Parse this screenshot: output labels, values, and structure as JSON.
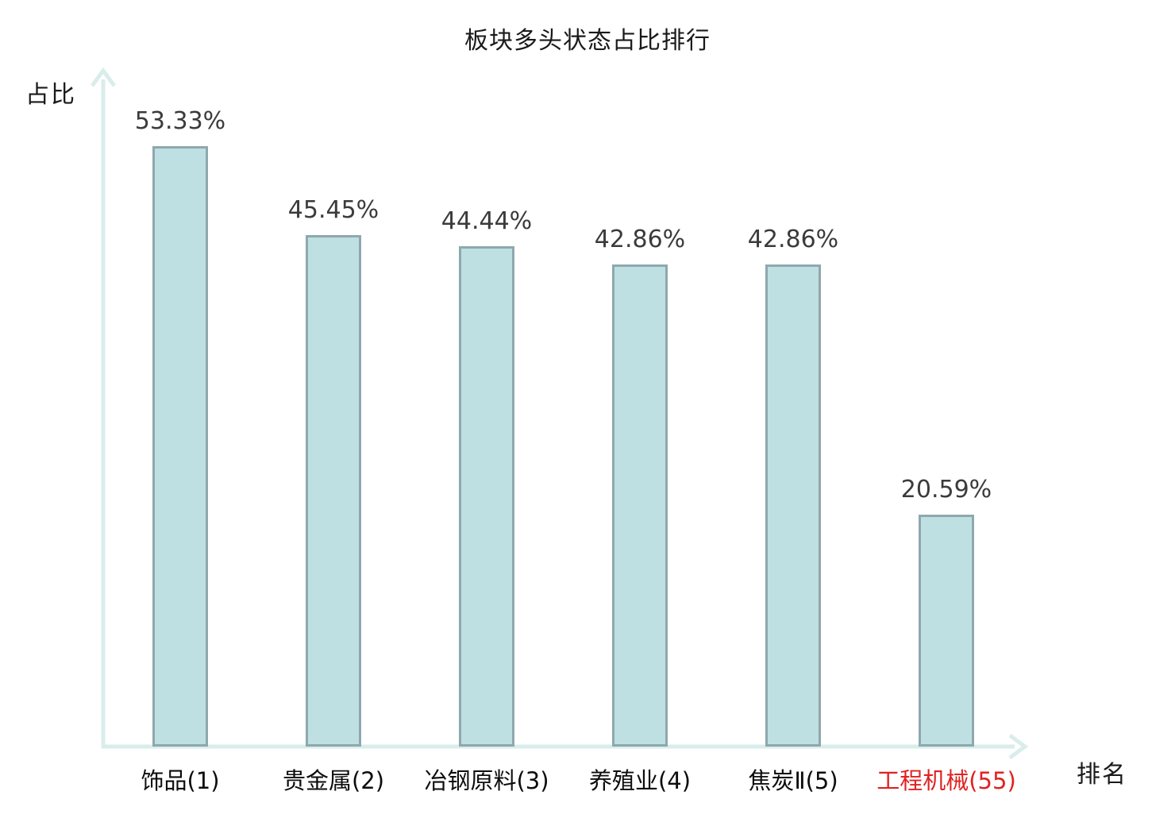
{
  "page": {
    "background": "#ffffff"
  },
  "chart_data": {
    "type": "bar",
    "title": "板块多头状态占比排行",
    "xlabel": "排名",
    "ylabel": "占比",
    "categories": [
      "饰品(1)",
      "贵金属(2)",
      "冶钢原料(3)",
      "养殖业(4)",
      "焦炭Ⅱ(5)",
      "工程机械(55)"
    ],
    "values": [
      53.33,
      45.45,
      44.44,
      42.86,
      42.86,
      20.59
    ],
    "value_labels": [
      "53.33%",
      "45.45%",
      "44.44%",
      "42.86%",
      "42.86%",
      "20.59%"
    ],
    "highlight_index": 5,
    "ylim": [
      0,
      56
    ],
    "grid": false,
    "legend": false,
    "colors": {
      "bar_fill": "#bfe0e2",
      "bar_border": "#8ea8ae",
      "axis": "#d9edeb",
      "value_text": "#3b3b3b",
      "category_text": "#0d0d0d",
      "highlight_text": "#e02222",
      "title_text": "#1a1a1a"
    }
  }
}
